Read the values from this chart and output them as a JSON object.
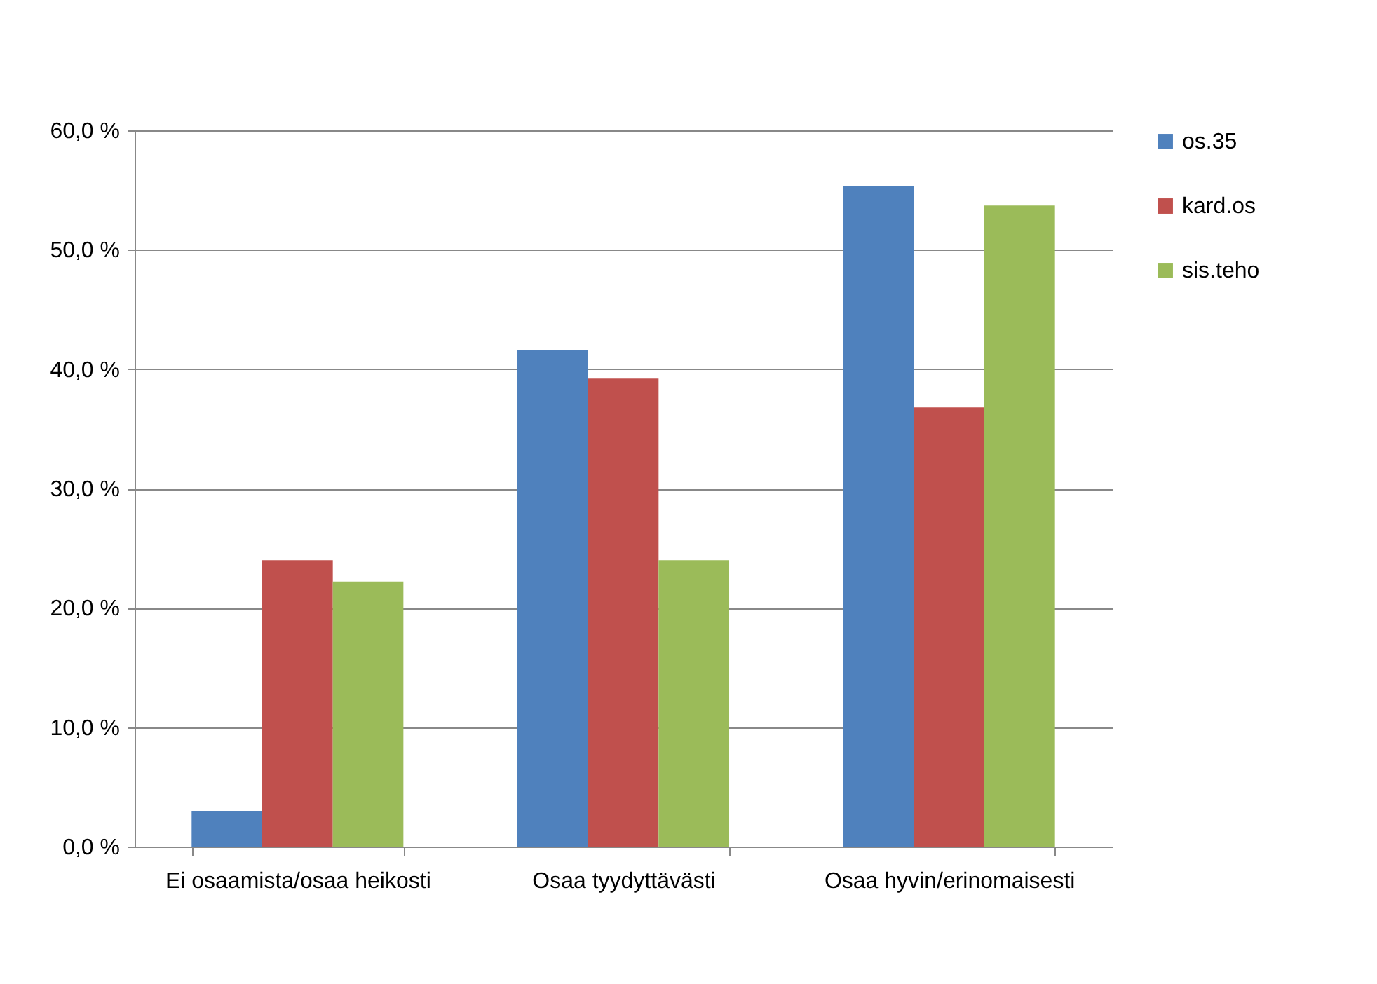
{
  "chart_data": {
    "type": "bar",
    "categories": [
      "Ei osaamista/osaa heikosti",
      "Osaa tyydyttävästi",
      "Osaa hyvin/erinomaisesti"
    ],
    "series": [
      {
        "name": "os.35",
        "color": "#4f81bd",
        "values": [
          3.0,
          41.6,
          55.3
        ]
      },
      {
        "name": "kard.os",
        "color": "#c0504d",
        "values": [
          24.0,
          39.2,
          36.8
        ]
      },
      {
        "name": "sis.teho",
        "color": "#9bbb59",
        "values": [
          22.2,
          24.0,
          53.7
        ]
      }
    ],
    "ylim": [
      0,
      60
    ],
    "yticks": [
      {
        "value": 0,
        "label": "0,0 %"
      },
      {
        "value": 10,
        "label": "10,0 %"
      },
      {
        "value": 20,
        "label": "20,0 %"
      },
      {
        "value": 30,
        "label": "30,0 %"
      },
      {
        "value": 40,
        "label": "40,0 %"
      },
      {
        "value": 50,
        "label": "50,0 %"
      },
      {
        "value": 60,
        "label": "60,0 %"
      }
    ],
    "grid": "y",
    "legend": "right"
  }
}
